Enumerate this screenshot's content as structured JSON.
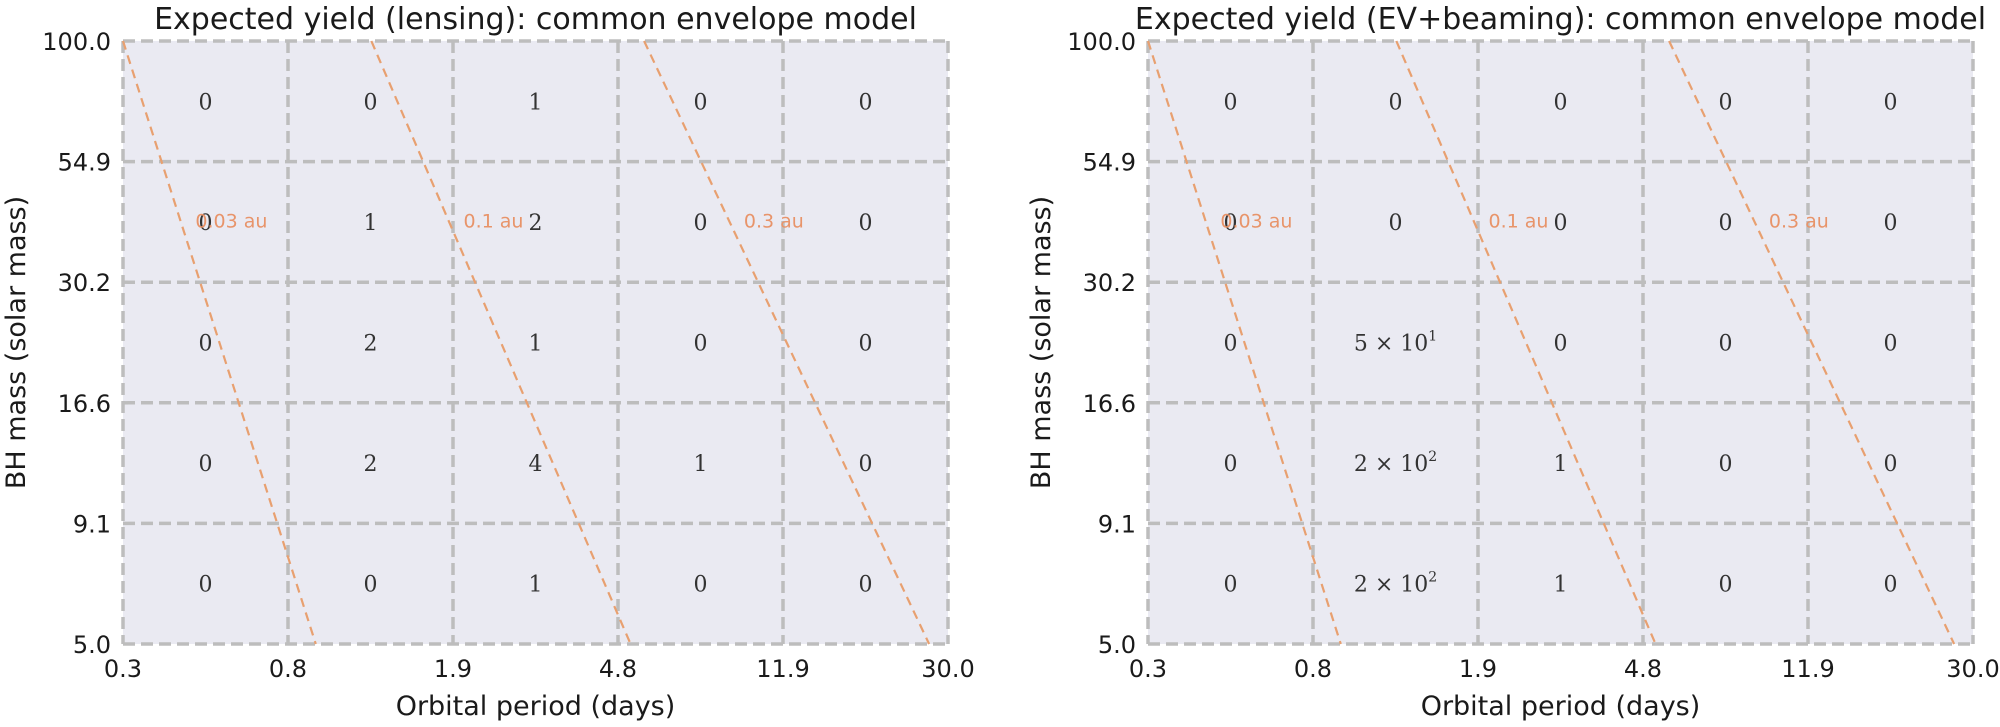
{
  "chart_data": [
    {
      "type": "heatmap",
      "title": "Expected yield (lensing): common envelope model",
      "xlabel": "Orbital period (days)",
      "ylabel": "BH mass (solar mass)",
      "x_scale": "log",
      "y_scale": "log",
      "x_ticks": [
        "0.3",
        "0.8",
        "1.9",
        "4.8",
        "11.9",
        "30.0"
      ],
      "y_ticks": [
        "5.0",
        "9.1",
        "16.6",
        "30.2",
        "54.9",
        "100.0"
      ],
      "grid": true,
      "cells": [
        [
          {
            "text": "0"
          },
          {
            "text": "0"
          },
          {
            "text": "1"
          },
          {
            "text": "0"
          },
          {
            "text": "0"
          }
        ],
        [
          {
            "text": "0"
          },
          {
            "text": "1"
          },
          {
            "text": "2"
          },
          {
            "text": "0"
          },
          {
            "text": "0"
          }
        ],
        [
          {
            "text": "0"
          },
          {
            "text": "2"
          },
          {
            "text": "1"
          },
          {
            "text": "0"
          },
          {
            "text": "0"
          }
        ],
        [
          {
            "text": "0"
          },
          {
            "text": "2"
          },
          {
            "text": "4"
          },
          {
            "text": "1"
          },
          {
            "text": "0"
          }
        ],
        [
          {
            "text": "0"
          },
          {
            "text": "0"
          },
          {
            "text": "1"
          },
          {
            "text": "0"
          },
          {
            "text": "0"
          }
        ]
      ],
      "separation_lines": [
        {
          "label": "0.03 au",
          "period_at_top": 0.3,
          "period_at_bottom": 0.88,
          "label_mass": 41
        },
        {
          "label": "0.1 au",
          "period_at_top": 1.2,
          "period_at_bottom": 5.1,
          "label_mass": 41
        },
        {
          "label": "0.3 au",
          "period_at_top": 5.5,
          "period_at_bottom": 27,
          "label_mass": 41
        }
      ]
    },
    {
      "type": "heatmap",
      "title": "Expected yield (EV+beaming): common envelope model",
      "xlabel": "Orbital period (days)",
      "ylabel": "BH mass (solar mass)",
      "x_scale": "log",
      "y_scale": "log",
      "x_ticks": [
        "0.3",
        "0.8",
        "1.9",
        "4.8",
        "11.9",
        "30.0"
      ],
      "y_ticks": [
        "5.0",
        "9.1",
        "16.6",
        "30.2",
        "54.9",
        "100.0"
      ],
      "grid": true,
      "cells": [
        [
          {
            "text": "0"
          },
          {
            "text": "0"
          },
          {
            "text": "0"
          },
          {
            "text": "0"
          },
          {
            "text": "0"
          }
        ],
        [
          {
            "text": "0"
          },
          {
            "text": "0"
          },
          {
            "text": "0"
          },
          {
            "text": "0"
          },
          {
            "text": "0"
          }
        ],
        [
          {
            "text": "0"
          },
          {
            "mantissa": "5",
            "sep": " × 10",
            "exp": "1"
          },
          {
            "text": "0"
          },
          {
            "text": "0"
          },
          {
            "text": "0"
          }
        ],
        [
          {
            "text": "0"
          },
          {
            "mantissa": "2",
            "sep": " × 10",
            "exp": "2"
          },
          {
            "text": "1"
          },
          {
            "text": "0"
          },
          {
            "text": "0"
          }
        ],
        [
          {
            "text": "0"
          },
          {
            "mantissa": "2",
            "sep": " × 10",
            "exp": "2"
          },
          {
            "text": "1"
          },
          {
            "text": "0"
          },
          {
            "text": "0"
          }
        ]
      ],
      "separation_lines": [
        {
          "label": "0.03 au",
          "period_at_top": 0.3,
          "period_at_bottom": 0.88,
          "label_mass": 41
        },
        {
          "label": "0.1 au",
          "period_at_top": 1.2,
          "period_at_bottom": 5.1,
          "label_mass": 41
        },
        {
          "label": "0.3 au",
          "period_at_top": 5.5,
          "period_at_bottom": 27,
          "label_mass": 41
        }
      ]
    }
  ]
}
